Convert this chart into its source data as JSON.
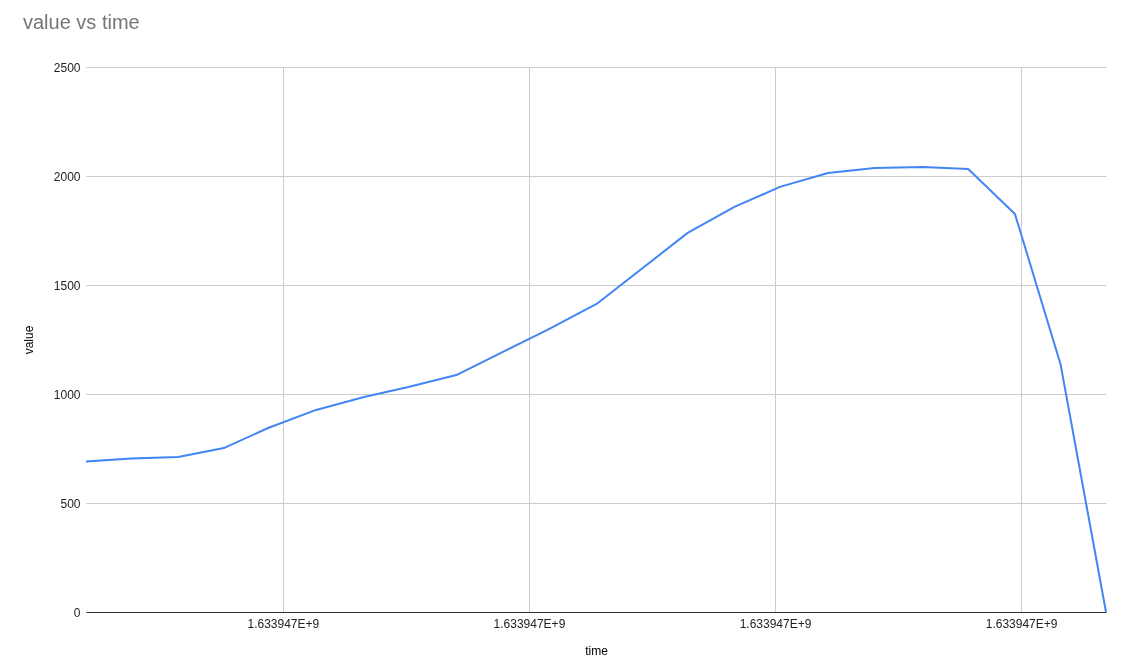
{
  "chart_data": {
    "type": "line",
    "title": "value vs time",
    "xlabel": "time",
    "ylabel": "value",
    "x": [
      1633946440,
      1633946477,
      1633946515,
      1633946552,
      1633946588,
      1633946627,
      1633946666,
      1633946702,
      1633946741,
      1633946815,
      1633946855,
      1633946929,
      1633946967,
      1633947004,
      1633947043,
      1633947081,
      1633947120,
      1633947157,
      1633947195,
      1633947232,
      1633947269
    ],
    "series": [
      {
        "color": "#4285f4",
        "values": [
          690,
          704,
          711,
          752,
          844,
          927,
          986,
          1032,
          1087,
          1294,
          1413,
          1739,
          1858,
          1950,
          2014,
          2037,
          2041,
          2032,
          1826,
          1138,
          0
        ]
      }
    ],
    "xlim": [
      1633946440,
      1633947269
    ],
    "xticks": [
      {
        "value": 1633946600,
        "label": "1.633947E+9"
      },
      {
        "value": 1633946800,
        "label": "1.633947E+9"
      },
      {
        "value": 1633947000,
        "label": "1.633947E+9"
      },
      {
        "value": 1633947200,
        "label": "1.633947E+9"
      }
    ],
    "ylim": [
      0,
      2500
    ],
    "yticks": [
      0,
      500,
      1000,
      1500,
      2000,
      2500
    ],
    "grid": true,
    "marker": "none",
    "line_style": "solid"
  }
}
